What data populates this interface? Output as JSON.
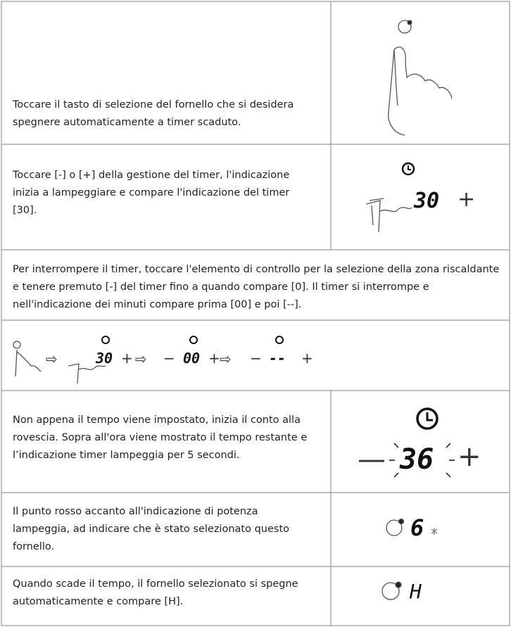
{
  "table": {
    "rows": [
      {
        "text": "Toccare il tasto di selezione del fornello che si desidera spegnere automaticamente a timer scaduto."
      },
      {
        "text": "Toccare [-] o [+] della gestione del timer, l'indicazione inizia a lampeggiare e compare l'indicazione del timer [30].",
        "display": [
          "30",
          "+"
        ]
      },
      {
        "text": "Per interrompere il timer, toccare l'elemento di controllo per la selezione della zona riscaldante e tenere premuto [-] del timer fino a quando compare [0]. Il timer si interrompe e nell'indicazione dei minuti compare prima [00] e poi [--]."
      },
      {
        "display": [
          "⇨",
          "30",
          "+",
          "⇨",
          "−",
          "00",
          "+",
          "⇨",
          "−",
          "--",
          "+"
        ]
      },
      {
        "text": "Non appena il tempo viene impostato, inizia il conto alla rovescia. Sopra all'ora viene mostrato il tempo restante e l’indicazione timer lampeggia per 5 secondi.",
        "display": [
          "—",
          "36",
          "+"
        ]
      },
      {
        "text": "Il punto rosso accanto all'indicazione di potenza lampeggia, ad indicare che è stato selezionato questo fornello.",
        "display": [
          "6"
        ]
      },
      {
        "text": "Quando scade il tempo, il fornello selezionato si spegne automaticamente e compare [H]."
      }
    ]
  }
}
